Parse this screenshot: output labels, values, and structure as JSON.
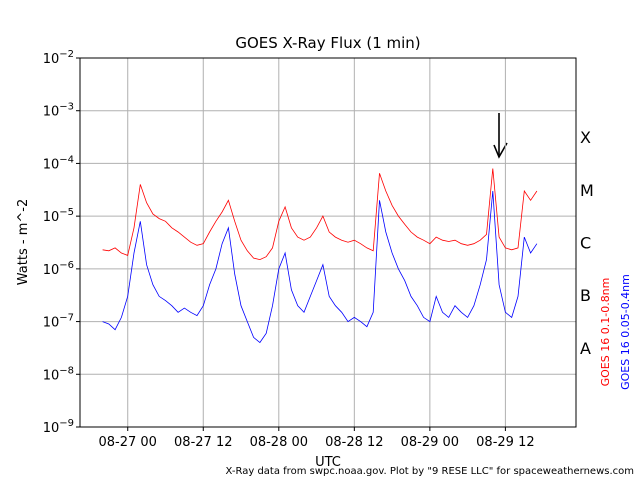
{
  "chart_data": {
    "type": "line",
    "title": "GOES X-Ray Flux (1 min)",
    "xlabel": "UTC",
    "ylabel": "Watts - m^-2",
    "annotation": "X-Ray data from swpc.noaa.gov. Plot by \"9 RESE LLC\" for spaceweathernews.com",
    "class_labels": [
      "A",
      "B",
      "C",
      "M",
      "X"
    ],
    "log_y": true,
    "grid": true,
    "x": [
      "08-26 20",
      "08-26 21",
      "08-26 22",
      "08-26 23",
      "08-27 00",
      "08-27 01",
      "08-27 02",
      "08-27 03",
      "08-27 04",
      "08-27 05",
      "08-27 06",
      "08-27 07",
      "08-27 08",
      "08-27 09",
      "08-27 10",
      "08-27 11",
      "08-27 12",
      "08-27 13",
      "08-27 14",
      "08-27 15",
      "08-27 16",
      "08-27 17",
      "08-27 18",
      "08-27 19",
      "08-27 20",
      "08-27 21",
      "08-27 22",
      "08-27 23",
      "08-28 00",
      "08-28 01",
      "08-28 02",
      "08-28 03",
      "08-28 04",
      "08-28 05",
      "08-28 06",
      "08-28 07",
      "08-28 08",
      "08-28 09",
      "08-28 10",
      "08-28 11",
      "08-28 12",
      "08-28 13",
      "08-28 14",
      "08-28 15",
      "08-28 16",
      "08-28 17",
      "08-28 18",
      "08-28 19",
      "08-28 20",
      "08-28 21",
      "08-28 22",
      "08-28 23",
      "08-29 00",
      "08-29 01",
      "08-29 02",
      "08-29 03",
      "08-29 04",
      "08-29 05",
      "08-29 06",
      "08-29 07",
      "08-29 08",
      "08-29 09",
      "08-29 10",
      "08-29 11",
      "08-29 12",
      "08-29 13",
      "08-29 14",
      "08-29 15",
      "08-29 16",
      "08-29 17"
    ],
    "series": [
      {
        "name": "GOES 16 0.1-0.8nm",
        "color": "#ff0000",
        "values": [
          2.3e-06,
          2.2e-06,
          2.5e-06,
          2e-06,
          1.8e-06,
          6e-06,
          4e-05,
          1.8e-05,
          1.1e-05,
          9e-06,
          8e-06,
          6e-06,
          5e-06,
          4e-06,
          3.2e-06,
          2.8e-06,
          3e-06,
          5e-06,
          8e-06,
          1.2e-05,
          2e-05,
          8e-06,
          3.5e-06,
          2.2e-06,
          1.6e-06,
          1.5e-06,
          1.7e-06,
          2.5e-06,
          8e-06,
          1.5e-05,
          6e-06,
          4e-06,
          3.5e-06,
          4e-06,
          6e-06,
          1e-05,
          5e-06,
          4e-06,
          3.5e-06,
          3.2e-06,
          3.5e-06,
          3e-06,
          2.5e-06,
          2.2e-06,
          6.5e-05,
          3e-05,
          1.6e-05,
          1e-05,
          7e-06,
          5e-06,
          4e-06,
          3.5e-06,
          3e-06,
          4e-06,
          3.5e-06,
          3.3e-06,
          3.5e-06,
          3e-06,
          2.8e-06,
          3e-06,
          3.5e-06,
          4.5e-06,
          8e-05,
          4e-06,
          2.5e-06,
          2.3e-06,
          2.5e-06,
          3e-05,
          2e-05,
          3e-05
        ]
      },
      {
        "name": "GOES 16 0.05-0.4nm",
        "color": "#0000ff",
        "values": [
          1e-07,
          9e-08,
          7e-08,
          1.2e-07,
          3e-07,
          2e-06,
          8e-06,
          1.2e-06,
          5e-07,
          3e-07,
          2.5e-07,
          2e-07,
          1.5e-07,
          1.8e-07,
          1.5e-07,
          1.3e-07,
          2e-07,
          5e-07,
          1e-06,
          3e-06,
          6e-06,
          8e-07,
          2e-07,
          1e-07,
          5e-08,
          4e-08,
          6e-08,
          2e-07,
          1e-06,
          2e-06,
          4e-07,
          2e-07,
          1.5e-07,
          3e-07,
          6e-07,
          1.2e-06,
          3e-07,
          2e-07,
          1.5e-07,
          1e-07,
          1.2e-07,
          1e-07,
          8e-08,
          1.5e-07,
          2e-05,
          5e-06,
          2e-06,
          1e-06,
          6e-07,
          3e-07,
          2e-07,
          1.2e-07,
          1e-07,
          3e-07,
          1.5e-07,
          1.2e-07,
          2e-07,
          1.5e-07,
          1.2e-07,
          2e-07,
          5e-07,
          1.5e-06,
          3e-05,
          5e-07,
          1.5e-07,
          1.2e-07,
          3e-07,
          4e-06,
          2e-06,
          3e-06
        ]
      }
    ],
    "xlim": [
      "08-26 16:25",
      "08-29 23:13"
    ],
    "xticks": [
      "08-27 00",
      "08-27 12",
      "08-28 00",
      "08-28 12",
      "08-29 00",
      "08-29 12"
    ],
    "ylim": [
      1e-09,
      0.01
    ],
    "yticks": [
      {
        "value": 1e-09,
        "label": "10^-9"
      },
      {
        "value": 1e-08,
        "label": "10^-8"
      },
      {
        "value": 1e-07,
        "label": "10^-7"
      },
      {
        "value": 1e-06,
        "label": "10^-6"
      },
      {
        "value": 1e-05,
        "label": "10^-5"
      },
      {
        "value": 0.0001,
        "label": "10^-4"
      },
      {
        "value": 0.001,
        "label": "10^-3"
      },
      {
        "value": 0.01,
        "label": "10^-2"
      }
    ]
  }
}
